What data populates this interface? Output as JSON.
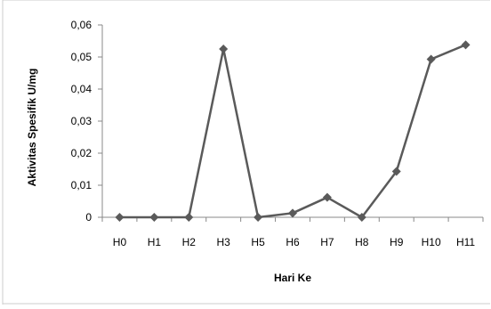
{
  "chart_data": {
    "type": "line",
    "title": "",
    "xlabel": "Hari Ke",
    "ylabel": "Aktivitas Spesifik U/mg",
    "categories": [
      "H0",
      "H1",
      "H2",
      "H3",
      "H5",
      "H6",
      "H7",
      "H8",
      "H9",
      "H10",
      "H11"
    ],
    "series": [
      {
        "values": [
          0,
          0,
          0,
          0.0525,
          0,
          0.0013,
          0.0062,
          0,
          0.0143,
          0.0493,
          0.0538
        ]
      }
    ],
    "ylim": [
      0,
      0.06
    ],
    "yticks": [
      "0",
      "0,01",
      "0,02",
      "0,03",
      "0,04",
      "0,05",
      "0,06"
    ],
    "ytick_values": [
      0,
      0.01,
      0.02,
      0.03,
      0.04,
      0.05,
      0.06
    ],
    "grid": false,
    "legend": "none",
    "line_color": "#5a5a5a",
    "marker_color": "#5a5a5a",
    "axis_color": "#888888"
  }
}
